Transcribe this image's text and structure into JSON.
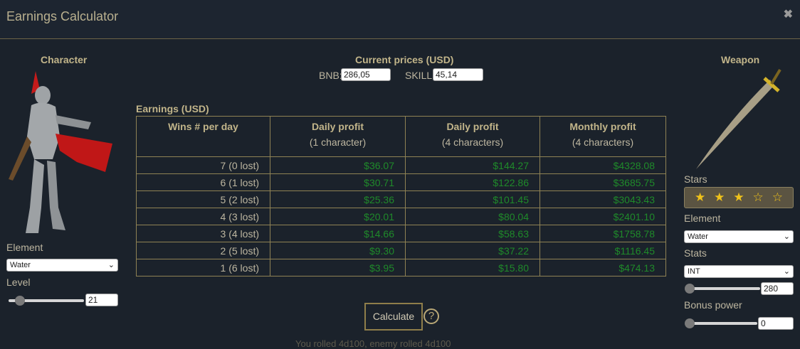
{
  "window": {
    "title": "Earnings Calculator",
    "close_icon": "close-icon"
  },
  "character": {
    "heading": "Character",
    "element_label": "Element",
    "element_value": "Water",
    "level_label": "Level",
    "level_value": "21",
    "level_slider": 0.1
  },
  "prices": {
    "heading": "Current prices (USD)",
    "bnb_label": "BNB:",
    "bnb_value": "286,05",
    "skill_label": "SKILL:",
    "skill_value": "45,14"
  },
  "earnings": {
    "heading": "Earnings (USD)",
    "columns": [
      {
        "title": "Wins # per day",
        "sub": ""
      },
      {
        "title": "Daily profit",
        "sub": "(1 character)"
      },
      {
        "title": "Daily profit",
        "sub": "(4 characters)"
      },
      {
        "title": "Monthly profit",
        "sub": "(4 characters)"
      }
    ],
    "rows": [
      [
        "7 (0 lost)",
        "$36.07",
        "$144.27",
        "$4328.08"
      ],
      [
        "6 (1 lost)",
        "$30.71",
        "$122.86",
        "$3685.75"
      ],
      [
        "5 (2 lost)",
        "$25.36",
        "$101.45",
        "$3043.43"
      ],
      [
        "4 (3 lost)",
        "$20.01",
        "$80.04",
        "$2401.10"
      ],
      [
        "3 (4 lost)",
        "$14.66",
        "$58.63",
        "$1758.78"
      ],
      [
        "2 (5 lost)",
        "$9.30",
        "$37.22",
        "$1116.45"
      ],
      [
        "1 (6 lost)",
        "$3.95",
        "$15.80",
        "$474.13"
      ]
    ]
  },
  "weapon": {
    "heading": "Weapon",
    "stars_label": "Stars",
    "stars_filled": 3,
    "stars_total": 5,
    "element_label": "Element",
    "element_value": "Water",
    "stats_label": "Stats",
    "stats_value": "INT",
    "stats_input": "280",
    "stats_slider": 0,
    "bonus_label": "Bonus power",
    "bonus_input": "0",
    "bonus_slider": 0
  },
  "actions": {
    "calculate": "Calculate",
    "help": "?"
  },
  "footer_faded": "You rolled 4d100, enemy rolled 4d100"
}
